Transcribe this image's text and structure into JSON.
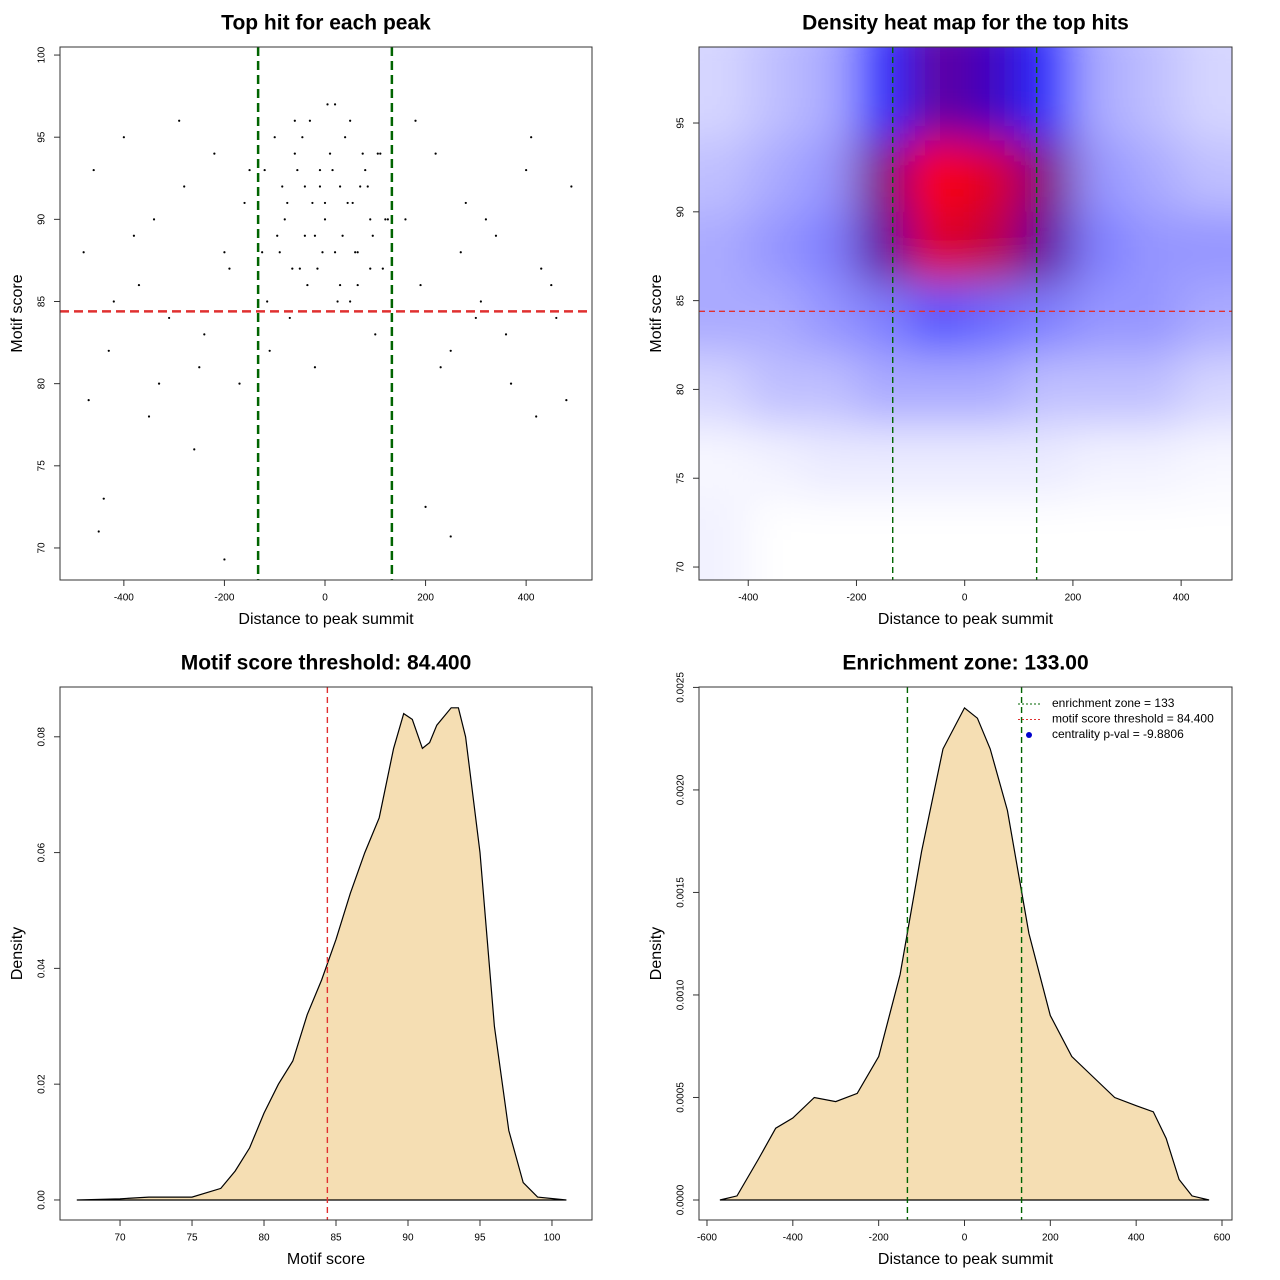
{
  "chart_data": [
    {
      "type": "scatter",
      "title": "Top hit for each peak",
      "xlabel": "Distance to peak summit",
      "ylabel": "Motif score",
      "xlim": [
        -527,
        531
      ],
      "ylim": [
        68.05,
        100.49
      ],
      "xticks": [
        -400,
        -200,
        0,
        200,
        400
      ],
      "yticks": [
        70,
        75,
        80,
        85,
        90,
        95,
        100
      ],
      "color": "#000000",
      "x": [
        -120,
        -100,
        -90,
        -75,
        -60,
        -50,
        -40,
        -30,
        -20,
        -10,
        0,
        10,
        20,
        30,
        40,
        55,
        65,
        80,
        95,
        110,
        125,
        -115,
        -85,
        -65,
        -45,
        -25,
        -5,
        15,
        35,
        50,
        70,
        90,
        105,
        120,
        -110,
        -70,
        -35,
        5,
        25,
        60,
        100,
        -95,
        -55,
        -15,
        45,
        85,
        -125,
        -80,
        -20,
        30,
        75,
        115,
        -60,
        0,
        50,
        -40,
        20,
        90,
        -10,
        65,
        -480,
        -460,
        -430,
        -400,
        -370,
        -340,
        -310,
        -280,
        -250,
        -220,
        -190,
        -160,
        -470,
        -420,
        -380,
        -330,
        -290,
        -240,
        -200,
        -150,
        160,
        190,
        220,
        250,
        280,
        310,
        340,
        370,
        400,
        430,
        460,
        490,
        180,
        230,
        270,
        320,
        360,
        410,
        450,
        480,
        -450,
        -350,
        -260,
        -170,
        200,
        300,
        420,
        -440,
        -200,
        250
      ],
      "y": [
        93,
        95,
        88,
        91,
        94,
        87,
        92,
        96,
        89,
        93,
        90,
        94,
        88,
        92,
        95,
        91,
        86,
        93,
        89,
        94,
        90,
        85,
        92,
        87,
        95,
        91,
        88,
        93,
        89,
        96,
        92,
        87,
        94,
        90,
        82,
        84,
        86,
        97,
        85,
        88,
        83,
        89,
        93,
        87,
        91,
        92,
        88,
        90,
        81,
        86,
        94,
        87,
        96,
        91,
        85,
        89,
        97,
        90,
        92,
        88,
        88,
        93,
        82,
        95,
        86,
        90,
        84,
        92,
        81,
        94,
        87,
        91,
        79,
        85,
        89,
        80,
        96,
        83,
        88,
        93,
        90,
        86,
        94,
        82,
        91,
        85,
        89,
        80,
        93,
        87,
        84,
        92,
        96,
        81,
        88,
        90,
        83,
        95,
        86,
        79,
        71,
        78,
        76,
        80,
        72.5,
        84,
        78,
        73,
        69.3,
        70.7
      ],
      "vlines": [
        {
          "value": -133,
          "color": "#006400"
        },
        {
          "value": 133,
          "color": "#006400"
        }
      ],
      "hlines": [
        {
          "value": 84.4,
          "color": "#e03030"
        }
      ]
    },
    {
      "type": "heatmap",
      "title": "Density heat map for the top hits",
      "xlabel": "Distance to peak summit",
      "ylabel": "Motif score",
      "xlim": [
        -491,
        494
      ],
      "ylim": [
        69.27,
        99.28
      ],
      "xticks": [
        -400,
        -200,
        0,
        200,
        400
      ],
      "yticks": [
        70,
        75,
        80,
        85,
        90,
        95
      ],
      "x": [
        -450,
        -350,
        -250,
        -150,
        -50,
        50,
        150,
        250,
        350,
        450
      ],
      "y": [
        96,
        92,
        88,
        84,
        80,
        76,
        72
      ],
      "z": [
        [
          0.1,
          0.15,
          0.2,
          0.5,
          0.75,
          0.7,
          0.5,
          0.2,
          0.15,
          0.1
        ],
        [
          0.15,
          0.2,
          0.25,
          0.8,
          1.0,
          0.95,
          0.8,
          0.25,
          0.2,
          0.15
        ],
        [
          0.2,
          0.25,
          0.3,
          0.75,
          0.95,
          0.9,
          0.75,
          0.3,
          0.25,
          0.25
        ],
        [
          0.2,
          0.2,
          0.25,
          0.3,
          0.4,
          0.35,
          0.3,
          0.25,
          0.25,
          0.2
        ],
        [
          0.1,
          0.15,
          0.15,
          0.2,
          0.2,
          0.2,
          0.15,
          0.15,
          0.15,
          0.1
        ],
        [
          0.02,
          0.03,
          0.05,
          0.05,
          0.05,
          0.05,
          0.05,
          0.03,
          0.03,
          0.02
        ],
        [
          0.03,
          0,
          0,
          0,
          0,
          0,
          0,
          0,
          0,
          0
        ]
      ],
      "vlines": [
        {
          "value": -133,
          "color": "#006400"
        },
        {
          "value": 133,
          "color": "#006400"
        }
      ],
      "hlines": [
        {
          "value": 84.4,
          "color": "#e03030"
        }
      ]
    },
    {
      "type": "density",
      "title": "Motif score threshold: 84.400",
      "xlabel": "Motif score",
      "ylabel": "Density",
      "xlim": [
        65.83,
        102.78
      ],
      "ylim": [
        -0.00346,
        0.0886
      ],
      "xticks": [
        70,
        75,
        80,
        85,
        90,
        95,
        100
      ],
      "yticks": [
        {
          "value": 0,
          "label": "0.00"
        },
        {
          "value": 0.02,
          "label": "0.02"
        },
        {
          "value": 0.04,
          "label": "0.04"
        },
        {
          "value": 0.06,
          "label": "0.06"
        },
        {
          "value": 0.08,
          "label": "0.08"
        }
      ],
      "color": "#f5deb3",
      "x": [
        67,
        70,
        72,
        75,
        77,
        78,
        79,
        80,
        81,
        82,
        83,
        84,
        85,
        86,
        87,
        88,
        89,
        89.7,
        90.3,
        91,
        91.5,
        92,
        93,
        93.5,
        94,
        95,
        95.5,
        96,
        97,
        98,
        99,
        101
      ],
      "y": [
        0,
        0.0002,
        0.0005,
        0.0005,
        0.002,
        0.005,
        0.009,
        0.015,
        0.02,
        0.024,
        0.032,
        0.038,
        0.045,
        0.053,
        0.06,
        0.066,
        0.078,
        0.084,
        0.083,
        0.078,
        0.079,
        0.082,
        0.085,
        0.085,
        0.08,
        0.06,
        0.045,
        0.03,
        0.012,
        0.003,
        0.0005,
        0
      ],
      "vlines": [
        {
          "value": 84.4,
          "color": "#e03030"
        }
      ]
    },
    {
      "type": "density",
      "title": "Enrichment zone: 133.00",
      "xlabel": "Distance to peak summit",
      "ylabel": "Density",
      "xlim": [
        -618.6,
        623.3
      ],
      "ylim": [
        -9.76e-05,
        0.002502
      ],
      "xticks": [
        -600,
        -400,
        -200,
        0,
        200,
        400,
        600
      ],
      "yticks": [
        {
          "value": 0,
          "label": "0.0000"
        },
        {
          "value": 0.0005,
          "label": "0.0005"
        },
        {
          "value": 0.001,
          "label": "0.0010"
        },
        {
          "value": 0.0015,
          "label": "0.0015"
        },
        {
          "value": 0.002,
          "label": "0.0020"
        },
        {
          "value": 0.0025,
          "label": "0.0025"
        }
      ],
      "color": "#f5deb3",
      "x": [
        -570,
        -530,
        -480,
        -440,
        -400,
        -350,
        -300,
        -250,
        -200,
        -150,
        -100,
        -50,
        0,
        30,
        60,
        100,
        150,
        200,
        250,
        300,
        350,
        400,
        440,
        470,
        500,
        530,
        570
      ],
      "y": [
        0,
        2e-05,
        0.0002,
        0.00035,
        0.0004,
        0.0005,
        0.00048,
        0.00052,
        0.0007,
        0.0011,
        0.0017,
        0.0022,
        0.0024,
        0.00235,
        0.0022,
        0.0019,
        0.0013,
        0.0009,
        0.0007,
        0.0006,
        0.0005,
        0.00046,
        0.00043,
        0.0003,
        0.0001,
        2e-05,
        0
      ],
      "vlines": [
        {
          "value": -133,
          "color": "#006400"
        },
        {
          "value": 133,
          "color": "#006400"
        }
      ],
      "legend": [
        {
          "label": "enrichment zone = 133",
          "color": "#006400",
          "symbol": "line"
        },
        {
          "label": "motif score threshold = 84.400",
          "color": "#e03030",
          "symbol": "line"
        },
        {
          "label": "centrality p-val = -9.8806",
          "color": "#0000cc",
          "symbol": "dot"
        }
      ]
    }
  ]
}
